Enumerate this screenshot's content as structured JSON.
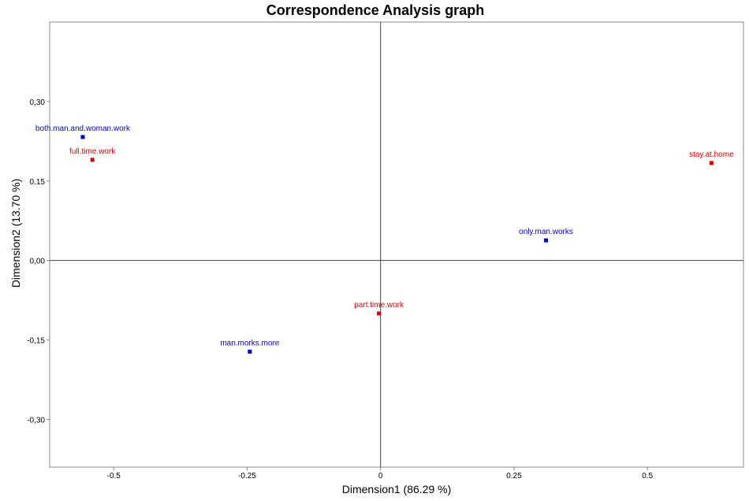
{
  "colors": {
    "series_a": "#0000cc",
    "series_b": "#dd0000",
    "axis": "#444444",
    "frame": "#888888"
  },
  "chart_data": {
    "type": "scatter",
    "title": "Correspondence Analysis graph",
    "xlabel": "Dimension1 (86.29 %)",
    "ylabel": "Dimension2 (13.70 %)",
    "xlim": [
      -0.62,
      0.68
    ],
    "ylim": [
      -0.39,
      0.45
    ],
    "x_ticks": [
      {
        "value": -0.5,
        "label": "-0.5"
      },
      {
        "value": -0.25,
        "label": "-0.25"
      },
      {
        "value": 0,
        "label": "0"
      },
      {
        "value": 0.25,
        "label": "0.25"
      },
      {
        "value": 0.5,
        "label": "0.5"
      }
    ],
    "y_ticks": [
      {
        "value": 0.3,
        "label": "0,30"
      },
      {
        "value": 0.15,
        "label": "0.15"
      },
      {
        "value": 0,
        "label": "0,00"
      },
      {
        "value": -0.15,
        "label": "-0,15"
      },
      {
        "value": -0.3,
        "label": "-0,30"
      }
    ],
    "grid": false,
    "origin_lines": true,
    "series": [
      {
        "color_key": "series_a",
        "points": [
          {
            "label": "both.man.and.woman.work",
            "x": -0.558,
            "y": 0.233
          },
          {
            "label": "only.man.works",
            "x": 0.31,
            "y": 0.038
          },
          {
            "label": "man.morks.more",
            "x": -0.245,
            "y": -0.172
          }
        ]
      },
      {
        "color_key": "series_b",
        "points": [
          {
            "label": "full.time.work",
            "x": -0.54,
            "y": 0.19
          },
          {
            "label": "stay.at.home",
            "x": 0.62,
            "y": 0.184
          },
          {
            "label": "part.time.work",
            "x": -0.003,
            "y": -0.1
          }
        ]
      }
    ]
  }
}
